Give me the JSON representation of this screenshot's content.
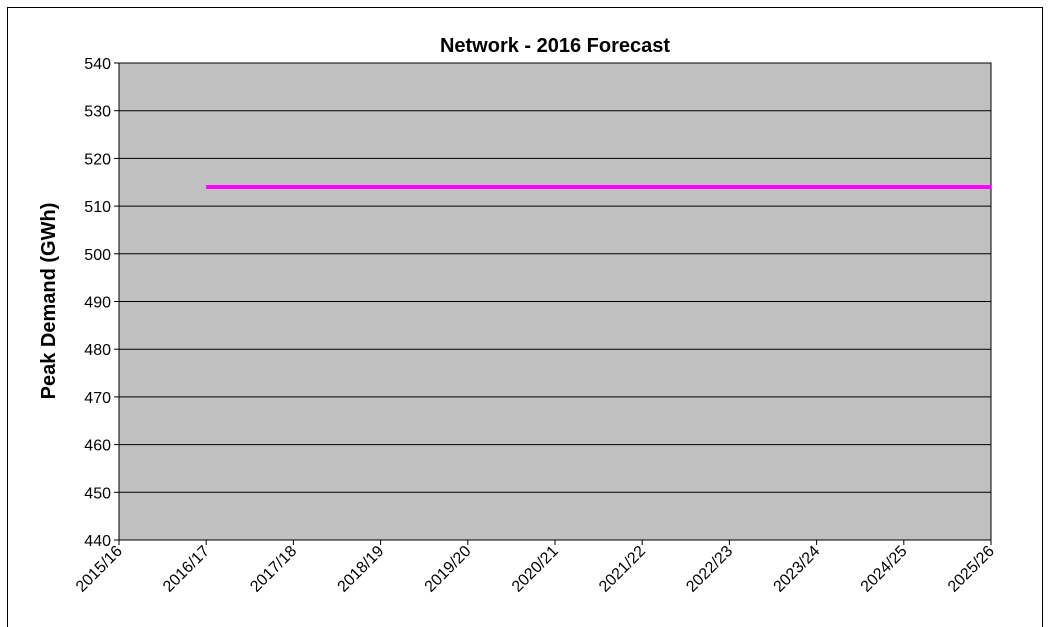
{
  "chart_data": {
    "type": "line",
    "title": "Network - 2016 Forecast",
    "y_label": "Peak Demand (GWh)",
    "categories": [
      "2015/16",
      "2016/17",
      "2017/18",
      "2018/19",
      "2019/20",
      "2020/21",
      "2021/22",
      "2022/23",
      "2023/24",
      "2024/25",
      "2025/26"
    ],
    "series": [
      {
        "name": "Network",
        "color": "#ff00ff",
        "values": [
          null,
          514,
          514,
          514,
          514,
          514,
          514,
          514,
          514,
          514,
          514
        ]
      }
    ],
    "ylim": [
      440,
      540
    ],
    "yticks": [
      440,
      450,
      460,
      470,
      480,
      490,
      500,
      510,
      520,
      530,
      540
    ],
    "grid": true
  }
}
